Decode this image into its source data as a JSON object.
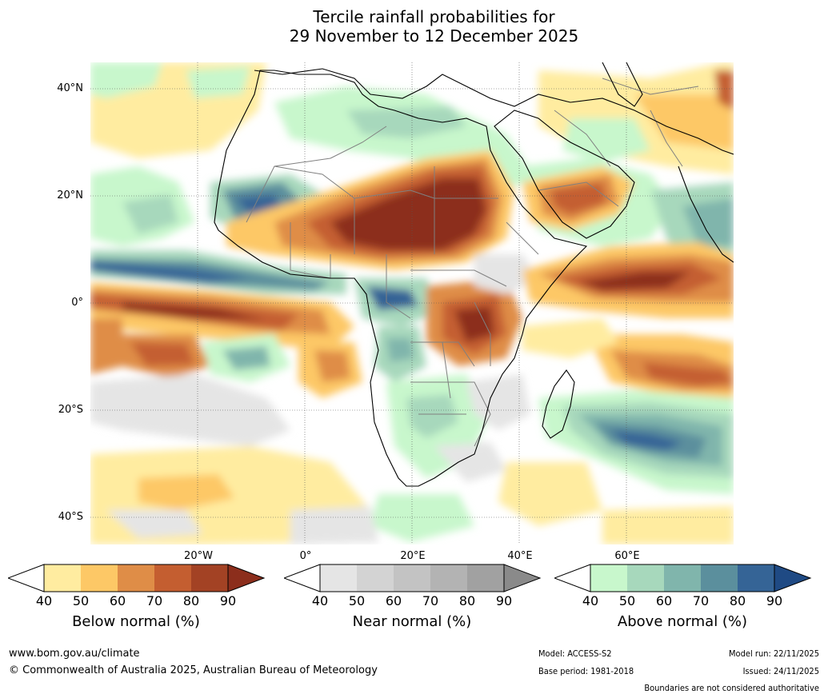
{
  "title": {
    "line1": "Tercile rainfall probabilities for",
    "line2": "29 November to 12 December 2025"
  },
  "axes": {
    "lat_labels": [
      "40°N",
      "20°N",
      "0°",
      "20°S",
      "40°S"
    ],
    "lon_labels": [
      "20°W",
      "0°",
      "20°E",
      "40°E",
      "60°E"
    ]
  },
  "colorbars": [
    {
      "name": "below",
      "label": "Below normal (%)",
      "ticks": [
        "40",
        "50",
        "60",
        "70",
        "80",
        "90"
      ],
      "colors": [
        "#ffeca0",
        "#fdc866",
        "#df8d47",
        "#c45e30",
        "#a34224",
        "#8c2e1c"
      ]
    },
    {
      "name": "near",
      "label": "Near normal (%)",
      "ticks": [
        "40",
        "50",
        "60",
        "70",
        "80",
        "90"
      ],
      "colors": [
        "#e5e5e5",
        "#d3d3d3",
        "#c3c3c3",
        "#b3b3b3",
        "#a1a1a1",
        "#8a8a8a"
      ]
    },
    {
      "name": "above",
      "label": "Above normal (%)",
      "ticks": [
        "40",
        "50",
        "60",
        "70",
        "80",
        "90"
      ],
      "colors": [
        "#c8f7cc",
        "#a7d8bc",
        "#80b5ac",
        "#5b8f9d",
        "#356496",
        "#1f4a84"
      ]
    }
  ],
  "footer": {
    "website": "www.bom.gov.au/climate",
    "copyright": "© Commonwealth of Australia 2025, Australian Bureau of Meteorology",
    "model": "Model: ACCESS-S2",
    "base_period": "Base period: 1981-2018",
    "model_run": "Model run: 22/11/2025",
    "issued": "Issued: 24/11/2025",
    "disclaimer": "Boundaries are not considered authoritative"
  },
  "colors": {
    "ocean_white": "#ffffff",
    "brown_dark": "#8c2e1c",
    "land_border": "#808080",
    "coast": "#000000"
  }
}
